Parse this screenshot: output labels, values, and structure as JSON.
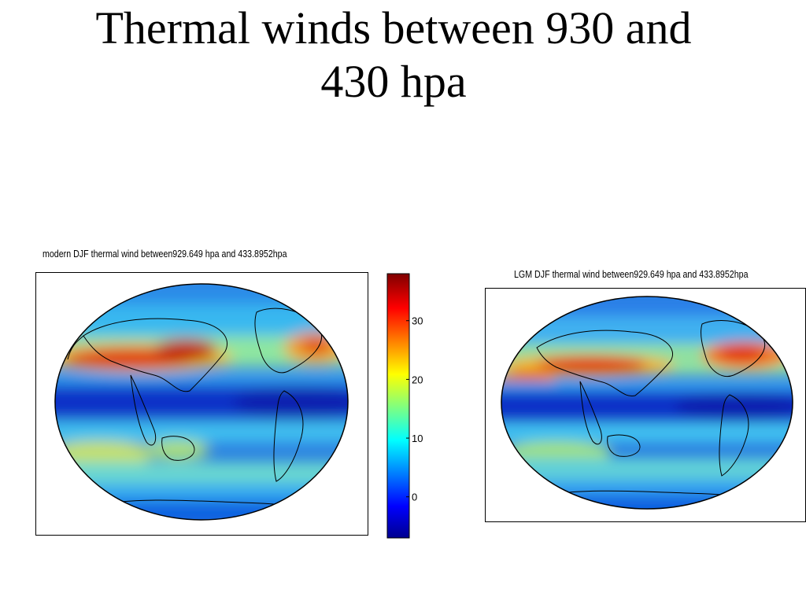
{
  "slide": {
    "title_line1": "Thermal winds between 930 and",
    "title_line2": "430 hpa"
  },
  "maps": [
    {
      "caption": "modern DJF thermal wind between929.649 hpa and 433.8952hpa",
      "projection": "robinson",
      "colormap": "jet"
    },
    {
      "caption": "LGM DJF thermal wind between929.649 hpa and 433.8952hpa",
      "projection": "robinson",
      "colormap": "jet"
    }
  ],
  "colorbar": {
    "min": -7,
    "max": 38,
    "ticks": [
      "30",
      "20",
      "10",
      "0"
    ],
    "tick_values": [
      30,
      20,
      10,
      0
    ],
    "colormap": "jet"
  }
}
